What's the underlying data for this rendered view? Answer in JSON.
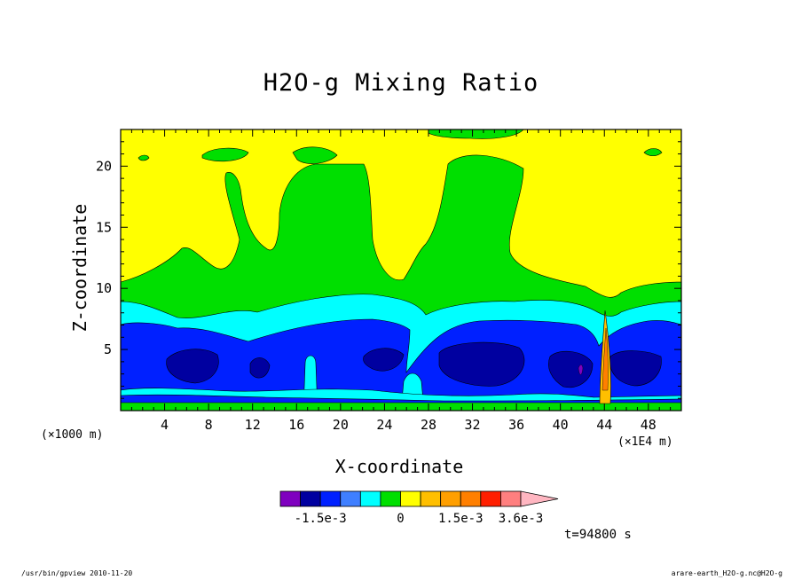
{
  "figure": {
    "title": "H2O-g Mixing Ratio",
    "x_unit_left": "(×1000 m)",
    "x_unit_right": "(×1E4 m)",
    "time_label": "t=94800 s",
    "footer_left": "/usr/bin/gpview  2010-11-20",
    "footer_right": "arare-earth_H2O-g.nc@H2O-g"
  },
  "chart_data": {
    "type": "heatmap",
    "title": "H2O-g Mixing Ratio",
    "xlabel": "X-coordinate",
    "ylabel": "Z-coordinate",
    "xlim": [
      0,
      51
    ],
    "ylim": [
      0,
      23
    ],
    "x_ticks": [
      4,
      8,
      12,
      16,
      20,
      24,
      28,
      32,
      36,
      40,
      44,
      48
    ],
    "y_ticks": [
      5,
      10,
      15,
      20
    ],
    "colorbar": {
      "tick_labels": [
        "-1.5e-3",
        "0",
        "1.5e-3",
        "3.6e-3"
      ],
      "levels": [
        {
          "color": "#7f00bf"
        },
        {
          "color": "#0000a0"
        },
        {
          "color": "#0020ff"
        },
        {
          "color": "#3f7fff"
        },
        {
          "color": "#00ffff"
        },
        {
          "color": "#00df00"
        },
        {
          "color": "#ffff00"
        },
        {
          "color": "#ffbf00"
        },
        {
          "color": "#ff9f00"
        },
        {
          "color": "#ff7f00"
        },
        {
          "color": "#ff1f00"
        },
        {
          "color": "#ff7f7f"
        },
        {
          "color": "#ffb6c1"
        }
      ]
    },
    "regions_by_height": [
      {
        "band": "z ≈ 0–0.7",
        "value_level": "0 (green)"
      },
      {
        "band": "z ≈ 0.7–1.7",
        "value_level": "-1.5e-3 (blue)"
      },
      {
        "band": "z ≈ 1.7–7",
        "value_level": "below -1.5e-3 (blue / dark blue cores)"
      },
      {
        "band": "z ≈ 7–9",
        "value_level": "cyan"
      },
      {
        "band": "z ≈ 9–10.5",
        "value_level": "green"
      },
      {
        "band": "z > 10.5",
        "value_level": "yellow, with green plumes near x ≈ 8–12, 16–24, 28–36"
      }
    ],
    "grid": false
  }
}
